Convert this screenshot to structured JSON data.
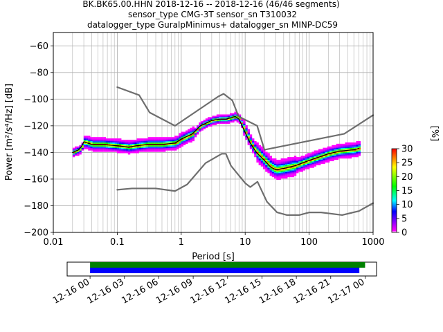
{
  "title_lines": [
    "BK.BK65.00.HHN   2018-12-16 -- 2018-12-16  (46/46 segments)",
    "sensor_type CMG-3T sensor_sn T310032",
    "datalogger_type GuralpMinimus+ datalogger_sn MINP-DC59"
  ],
  "chart_data": {
    "type": "heatmap",
    "xlabel": "Period [s]",
    "ylabel": "Power [m²/s⁴/Hz] [dB]",
    "x_scale": "log",
    "xlim": [
      0.01,
      1000
    ],
    "ylim": [
      -200,
      -50
    ],
    "x_ticks": [
      {
        "value": 0.01,
        "label": "0.01"
      },
      {
        "value": 0.1,
        "label": "0.1"
      },
      {
        "value": 1,
        "label": "1"
      },
      {
        "value": 10,
        "label": "10"
      },
      {
        "value": 100,
        "label": "100"
      },
      {
        "value": 1000,
        "label": "1000"
      }
    ],
    "y_ticks": [
      -60,
      -80,
      -100,
      -120,
      -140,
      -160,
      -180,
      -200
    ],
    "grid": true,
    "series": [
      {
        "role": "nhnm",
        "color": "#666666",
        "points": [
          [
            0.1,
            -91
          ],
          [
            0.22,
            -97
          ],
          [
            0.32,
            -110
          ],
          [
            0.8,
            -120
          ],
          [
            3.8,
            -98
          ],
          [
            4.6,
            -96
          ],
          [
            6.3,
            -101
          ],
          [
            7.9,
            -113
          ],
          [
            15.4,
            -120
          ],
          [
            20,
            -138
          ],
          [
            354,
            -126
          ],
          [
            1000,
            -112
          ]
        ]
      },
      {
        "role": "nlnm",
        "color": "#666666",
        "points": [
          [
            0.1,
            -168
          ],
          [
            0.17,
            -167
          ],
          [
            0.4,
            -167
          ],
          [
            0.8,
            -169
          ],
          [
            1.24,
            -164
          ],
          [
            2.4,
            -148
          ],
          [
            4.3,
            -141
          ],
          [
            5,
            -141
          ],
          [
            6,
            -150
          ],
          [
            10,
            -163
          ],
          [
            12,
            -166
          ],
          [
            15.6,
            -162
          ],
          [
            21.9,
            -177
          ],
          [
            31.6,
            -185
          ],
          [
            45,
            -187
          ],
          [
            70,
            -187
          ],
          [
            101,
            -185
          ],
          [
            154,
            -185
          ],
          [
            328,
            -187
          ],
          [
            600,
            -184
          ],
          [
            1000,
            -178
          ]
        ]
      },
      {
        "role": "mode",
        "color": "#000000",
        "points": [
          [
            0.02,
            -140
          ],
          [
            0.025,
            -138
          ],
          [
            0.028,
            -135
          ],
          [
            0.03,
            -132
          ],
          [
            0.04,
            -134
          ],
          [
            0.06,
            -134
          ],
          [
            0.1,
            -135
          ],
          [
            0.15,
            -136
          ],
          [
            0.2,
            -135
          ],
          [
            0.3,
            -134
          ],
          [
            0.5,
            -134
          ],
          [
            0.8,
            -133
          ],
          [
            1,
            -130
          ],
          [
            1.5,
            -126
          ],
          [
            2,
            -120
          ],
          [
            3,
            -116
          ],
          [
            4,
            -115
          ],
          [
            5,
            -115
          ],
          [
            6,
            -114
          ],
          [
            7,
            -113
          ],
          [
            8,
            -115
          ],
          [
            10,
            -125
          ],
          [
            12,
            -133
          ],
          [
            15,
            -140
          ],
          [
            20,
            -146
          ],
          [
            25,
            -151
          ],
          [
            30,
            -153
          ],
          [
            40,
            -152
          ],
          [
            60,
            -150
          ],
          [
            100,
            -146
          ],
          [
            200,
            -141
          ],
          [
            300,
            -139
          ],
          [
            500,
            -138
          ],
          [
            600,
            -137
          ]
        ]
      }
    ],
    "colorbar": {
      "label": "[%]",
      "min": 0,
      "max": 30,
      "ticks": [
        0,
        5,
        10,
        15,
        20,
        25,
        30
      ],
      "colors": [
        "#ffffff",
        "#ff00ff",
        "#0000ff",
        "#00ffff",
        "#00ff00",
        "#ffff00",
        "#ff0000"
      ]
    },
    "coverage": {
      "x_ticks": [
        "12-16 00",
        "12-16 03",
        "12-16 06",
        "12-16 09",
        "12-16 12",
        "12-16 15",
        "12-16 18",
        "12-16 21",
        "12-17 00"
      ],
      "xlim_hours": [
        -2,
        25
      ],
      "bars": [
        {
          "role": "data",
          "color": "#008000",
          "start_hour": 0,
          "end_hour": 24
        },
        {
          "role": "used",
          "color": "#0000ff",
          "start_hour": 0,
          "end_hour": 23.5
        }
      ]
    }
  }
}
